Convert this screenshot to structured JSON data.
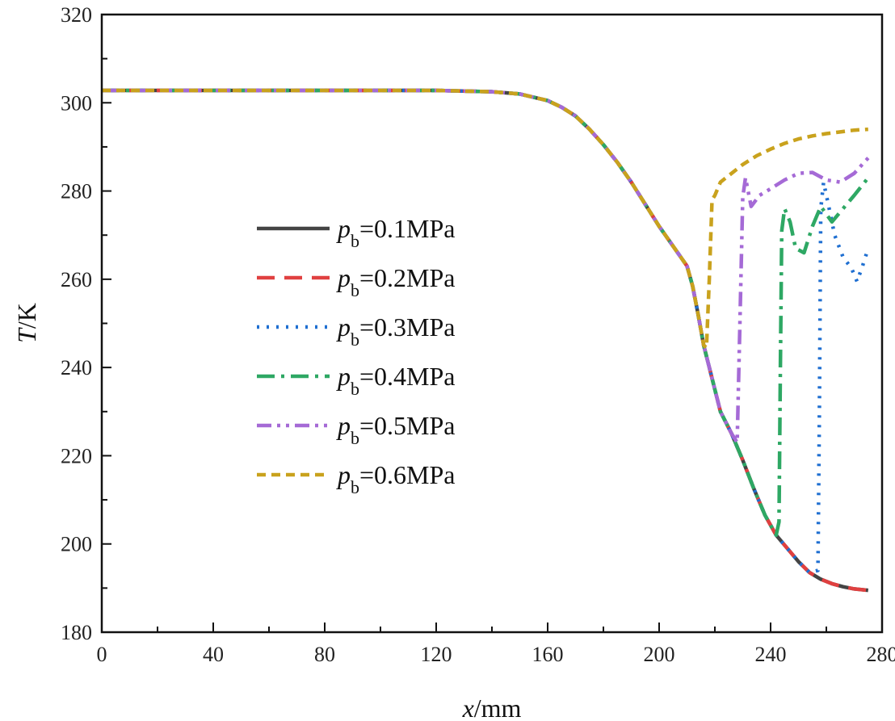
{
  "chart_data": {
    "type": "line",
    "title": "",
    "xlabel_var": "x",
    "xlabel_unit": "/mm",
    "ylabel_var": "T",
    "ylabel_unit": "/K",
    "xlim": [
      0,
      280
    ],
    "ylim": [
      180,
      320
    ],
    "xticks": [
      0,
      40,
      80,
      120,
      160,
      200,
      240,
      280
    ],
    "yticks": [
      180,
      200,
      220,
      240,
      260,
      280,
      300,
      320
    ],
    "xticks_minor_step": 20,
    "yticks_minor_step": 10,
    "grid": false,
    "legend_position": "left-middle",
    "series": [
      {
        "name": "0.1MPa",
        "label_var": "p",
        "label_sub": "b",
        "label_value": "=0.1MPa",
        "color": "#444444",
        "dash": "solid",
        "x": [
          0,
          40,
          80,
          120,
          140,
          150,
          160,
          165,
          170,
          175,
          180,
          185,
          190,
          195,
          200,
          205,
          210,
          212,
          214,
          216,
          218,
          220,
          222,
          226,
          230,
          234,
          238,
          242,
          246,
          250,
          254,
          258,
          262,
          266,
          270,
          275
        ],
        "y": [
          302.8,
          302.8,
          302.8,
          302.8,
          302.5,
          302.0,
          300.5,
          299.0,
          297.0,
          294.0,
          290.5,
          286.5,
          282.0,
          277.0,
          272.0,
          267.5,
          263.0,
          258.5,
          252.0,
          245.0,
          240.0,
          235.0,
          230.0,
          225.0,
          219.0,
          212.5,
          206.5,
          202.0,
          199.0,
          196.0,
          193.5,
          192.0,
          191.0,
          190.3,
          189.8,
          189.5
        ]
      },
      {
        "name": "0.2MPa",
        "label_var": "p",
        "label_sub": "b",
        "label_value": "=0.2MPa",
        "color": "#e04040",
        "dash": "dashed",
        "x": [
          0,
          40,
          80,
          120,
          140,
          150,
          160,
          165,
          170,
          175,
          180,
          185,
          190,
          195,
          200,
          205,
          210,
          212,
          214,
          216,
          218,
          220,
          222,
          226,
          230,
          234,
          238,
          242,
          246,
          250,
          254,
          258,
          262,
          266,
          270,
          275
        ],
        "y": [
          302.8,
          302.8,
          302.8,
          302.8,
          302.5,
          302.0,
          300.5,
          299.0,
          297.0,
          294.0,
          290.5,
          286.5,
          282.0,
          277.0,
          272.0,
          267.5,
          263.0,
          258.5,
          252.0,
          245.0,
          240.0,
          235.0,
          230.0,
          225.0,
          219.0,
          212.5,
          206.5,
          202.0,
          199.0,
          196.0,
          193.5,
          192.0,
          191.0,
          190.3,
          189.8,
          189.5
        ]
      },
      {
        "name": "0.3MPa",
        "label_var": "p",
        "label_sub": "b",
        "label_value": "=0.3MPa",
        "color": "#1f6fd1",
        "dash": "dotted",
        "x": [
          0,
          40,
          80,
          120,
          140,
          150,
          160,
          165,
          170,
          175,
          180,
          185,
          190,
          195,
          200,
          205,
          210,
          212,
          214,
          216,
          218,
          220,
          222,
          226,
          230,
          234,
          238,
          242,
          246,
          250,
          254,
          257,
          257.5,
          258,
          259,
          261,
          263,
          266,
          269,
          271,
          273,
          275
        ],
        "y": [
          302.8,
          302.8,
          302.8,
          302.8,
          302.5,
          302.0,
          300.5,
          299.0,
          297.0,
          294.0,
          290.5,
          286.5,
          282.0,
          277.0,
          272.0,
          267.5,
          263.0,
          258.5,
          252.0,
          245.0,
          240.0,
          235.0,
          230.0,
          225.0,
          219.0,
          212.5,
          206.5,
          202.0,
          199.0,
          196.0,
          193.5,
          194.0,
          230.0,
          276.0,
          282.0,
          276.0,
          270.0,
          265.0,
          262.5,
          259.5,
          263.0,
          267.0
        ]
      },
      {
        "name": "0.4MPa",
        "label_var": "p",
        "label_sub": "b",
        "label_value": "=0.4MPa",
        "color": "#2ea864",
        "dash": "dashdot",
        "x": [
          0,
          40,
          80,
          120,
          140,
          150,
          160,
          165,
          170,
          175,
          180,
          185,
          190,
          195,
          200,
          205,
          210,
          212,
          214,
          216,
          218,
          220,
          222,
          226,
          230,
          234,
          238,
          242,
          243,
          243.5,
          244,
          245,
          247,
          249,
          252,
          255,
          258,
          262,
          266,
          270,
          275
        ],
        "y": [
          302.8,
          302.8,
          302.8,
          302.8,
          302.5,
          302.0,
          300.5,
          299.0,
          297.0,
          294.0,
          290.5,
          286.5,
          282.0,
          277.0,
          272.0,
          267.5,
          263.0,
          258.5,
          252.0,
          245.0,
          240.0,
          235.0,
          230.0,
          225.0,
          219.0,
          212.5,
          206.5,
          202.0,
          205.0,
          240.0,
          271.0,
          276.0,
          273.0,
          267.0,
          266.0,
          272.0,
          276.5,
          273.0,
          276.0,
          279.0,
          283.0
        ]
      },
      {
        "name": "0.5MPa",
        "label_var": "p",
        "label_sub": "b",
        "label_value": "=0.5MPa",
        "color": "#a56ad6",
        "dash": "dashdotdot",
        "x": [
          0,
          40,
          80,
          120,
          140,
          150,
          160,
          165,
          170,
          175,
          180,
          185,
          190,
          195,
          200,
          205,
          210,
          212,
          214,
          216,
          218,
          220,
          222,
          226,
          228,
          229,
          230,
          231,
          233,
          236,
          240,
          245,
          250,
          255,
          260,
          265,
          270,
          275
        ],
        "y": [
          302.8,
          302.8,
          302.8,
          302.8,
          302.5,
          302.0,
          300.5,
          299.0,
          297.0,
          294.0,
          290.5,
          286.5,
          282.0,
          277.0,
          272.0,
          267.5,
          263.0,
          258.5,
          252.0,
          245.0,
          240.0,
          235.0,
          230.0,
          225.0,
          223.0,
          250.0,
          278.5,
          283.0,
          276.5,
          279.0,
          280.5,
          282.5,
          284.0,
          284.2,
          282.5,
          282.0,
          284.0,
          287.5
        ]
      },
      {
        "name": "0.6MPa",
        "label_var": "p",
        "label_sub": "b",
        "label_value": "=0.6MPa",
        "color": "#c9a21d",
        "dash": "shortdash",
        "x": [
          0,
          40,
          80,
          120,
          140,
          150,
          160,
          165,
          170,
          175,
          180,
          185,
          190,
          195,
          200,
          205,
          210,
          212,
          214,
          216,
          217,
          218,
          219,
          220,
          222,
          226,
          230,
          235,
          240,
          245,
          250,
          255,
          260,
          265,
          270,
          275
        ],
        "y": [
          302.8,
          302.8,
          302.8,
          302.8,
          302.5,
          302.0,
          300.5,
          299.0,
          297.0,
          294.0,
          290.5,
          286.5,
          282.0,
          277.0,
          272.0,
          267.5,
          263.0,
          258.5,
          252.0,
          245.0,
          244.5,
          260.0,
          278.0,
          279.0,
          282.0,
          284.0,
          286.0,
          288.0,
          289.5,
          290.8,
          291.8,
          292.5,
          293.0,
          293.4,
          293.8,
          294.0
        ]
      }
    ]
  }
}
